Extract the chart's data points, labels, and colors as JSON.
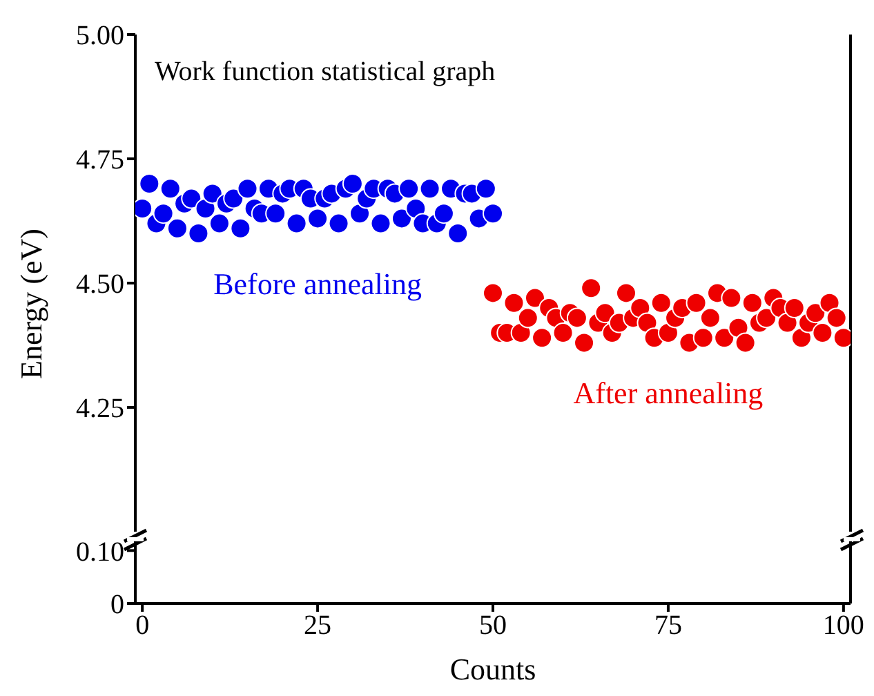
{
  "chart_data": [
    {
      "type": "scatter",
      "title": "Work function statistical graph",
      "ylabel": "Energy (eV)",
      "xlim": [
        -1,
        101
      ],
      "xticks": [
        0,
        25,
        50,
        75,
        100
      ],
      "ylim": [
        4.0,
        5.0
      ],
      "yticks": [
        {
          "value": 4.25,
          "label": "4.25"
        },
        {
          "value": 4.5,
          "label": "4.50"
        },
        {
          "value": 4.75,
          "label": "4.75"
        },
        {
          "value": 5.0,
          "label": "5.00"
        }
      ],
      "tick_labels": "y",
      "marker": "circle",
      "legend": false,
      "series": [
        {
          "name": "Before annealing",
          "color": "#0000ee",
          "x": [
            0,
            1,
            2,
            3,
            4,
            5,
            6,
            7,
            8,
            9,
            10,
            11,
            12,
            13,
            14,
            15,
            16,
            17,
            18,
            19,
            20,
            21,
            22,
            23,
            24,
            25,
            26,
            27,
            28,
            29,
            30,
            31,
            32,
            33,
            34,
            35,
            36,
            37,
            38,
            39,
            40,
            41,
            42,
            43,
            44,
            45,
            46,
            47,
            48,
            49,
            50
          ],
          "values": [
            4.65,
            4.7,
            4.62,
            4.64,
            4.69,
            4.61,
            4.66,
            4.67,
            4.6,
            4.65,
            4.68,
            4.62,
            4.66,
            4.67,
            4.61,
            4.69,
            4.65,
            4.64,
            4.69,
            4.64,
            4.68,
            4.69,
            4.62,
            4.69,
            4.67,
            4.63,
            4.67,
            4.68,
            4.62,
            4.69,
            4.7,
            4.64,
            4.67,
            4.69,
            4.62,
            4.69,
            4.68,
            4.63,
            4.69,
            4.65,
            4.62,
            4.69,
            4.62,
            4.64,
            4.69,
            4.6,
            4.68,
            4.68,
            4.63,
            4.69,
            4.64
          ]
        },
        {
          "name": "After annealing",
          "color": "#ee0000",
          "x": [
            50,
            51,
            52,
            53,
            54,
            55,
            56,
            57,
            58,
            59,
            60,
            61,
            62,
            63,
            64,
            65,
            66,
            67,
            68,
            69,
            70,
            71,
            72,
            73,
            74,
            75,
            76,
            77,
            78,
            79,
            80,
            81,
            82,
            83,
            84,
            85,
            86,
            87,
            88,
            89,
            90,
            91,
            92,
            93,
            94,
            95,
            96,
            97,
            98,
            99,
            100
          ],
          "values": [
            4.48,
            4.4,
            4.4,
            4.46,
            4.4,
            4.43,
            4.47,
            4.39,
            4.45,
            4.43,
            4.4,
            4.44,
            4.43,
            4.38,
            4.49,
            4.42,
            4.44,
            4.4,
            4.42,
            4.48,
            4.43,
            4.45,
            4.42,
            4.39,
            4.46,
            4.4,
            4.43,
            4.45,
            4.38,
            4.46,
            4.39,
            4.43,
            4.48,
            4.39,
            4.47,
            4.41,
            4.38,
            4.46,
            4.42,
            4.43,
            4.47,
            4.45,
            4.42,
            4.45,
            4.39,
            4.42,
            4.44,
            4.4,
            4.46,
            4.43,
            4.39
          ]
        }
      ]
    },
    {
      "type": "scatter",
      "xlabel": "Counts",
      "xlim": [
        -1,
        101
      ],
      "xticks": [
        0,
        25,
        50,
        75,
        100
      ],
      "ylim": [
        0,
        0.12
      ],
      "yticks": [
        0,
        {
          "value": 0.1,
          "label": "0.10"
        }
      ]
    }
  ]
}
